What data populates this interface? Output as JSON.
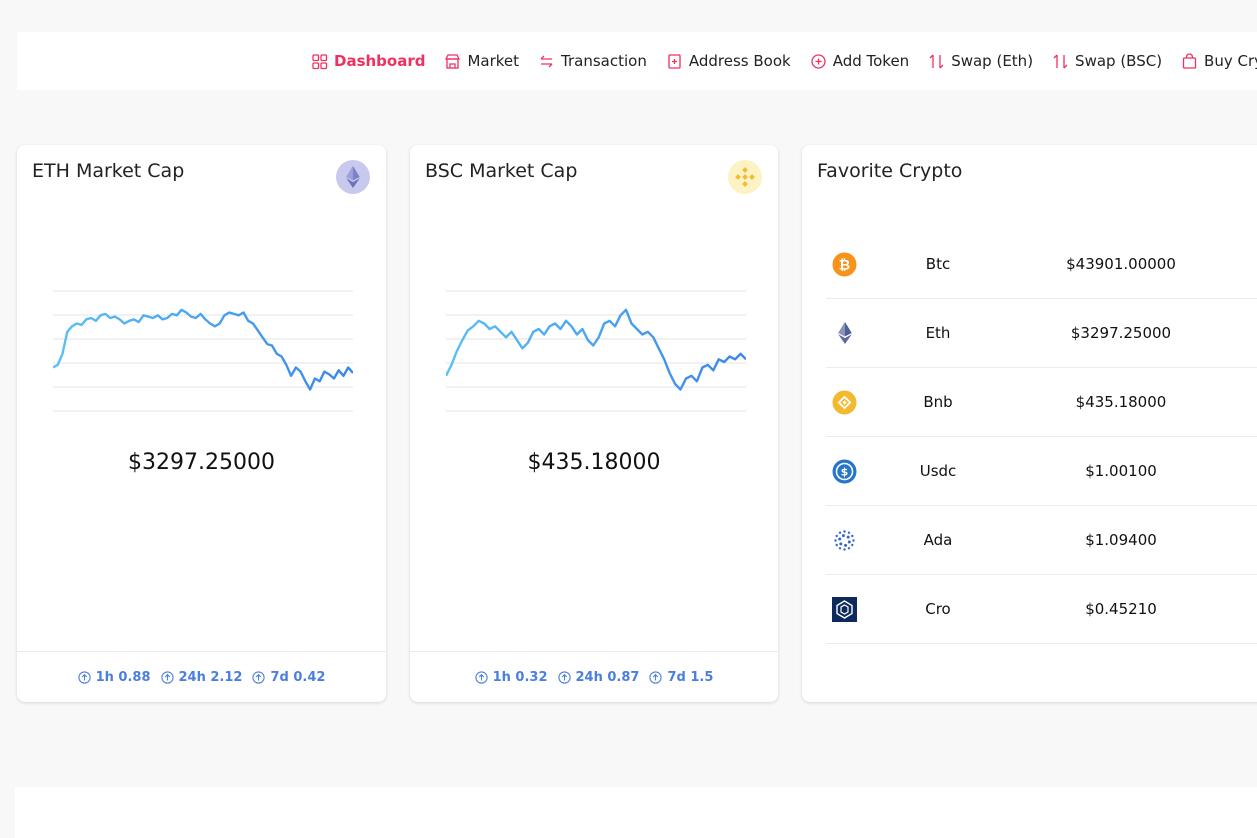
{
  "nav": {
    "items": [
      {
        "label": "Dashboard",
        "icon": "grid-icon",
        "active": true
      },
      {
        "label": "Market",
        "icon": "store-icon"
      },
      {
        "label": "Transaction",
        "icon": "swap-horizontal-icon"
      },
      {
        "label": "Address Book",
        "icon": "address-book-icon"
      },
      {
        "label": "Add Token",
        "icon": "plus-circle-icon"
      },
      {
        "label": "Swap (Eth)",
        "icon": "swap-vertical-icon"
      },
      {
        "label": "Swap (BSC)",
        "icon": "swap-vertical-icon"
      },
      {
        "label": "Buy Cryp",
        "icon": "shopping-bag-icon"
      }
    ],
    "accent": "#f0305f"
  },
  "eth_card": {
    "title": "ETH Market Cap",
    "icon": "ethereum-icon",
    "price": "$3297.25000",
    "changes": [
      {
        "label": "1h 0.88"
      },
      {
        "label": "24h 2.12"
      },
      {
        "label": "7d 0.42"
      }
    ]
  },
  "bsc_card": {
    "title": "BSC Market Cap",
    "icon": "binance-icon",
    "price": "$435.18000",
    "changes": [
      {
        "label": "1h 0.32"
      },
      {
        "label": "24h 0.87"
      },
      {
        "label": "7d 1.5"
      }
    ]
  },
  "favorites": {
    "title": "Favorite Crypto",
    "items": [
      {
        "name": "Btc",
        "price": "$43901.00000",
        "icon": "bitcoin-icon",
        "color": "#f7931a"
      },
      {
        "name": "Eth",
        "price": "$3297.25000",
        "icon": "ethereum-icon",
        "color": "#627eea"
      },
      {
        "name": "Bnb",
        "price": "$435.18000",
        "icon": "binance-icon",
        "color": "#f3ba2f"
      },
      {
        "name": "Usdc",
        "price": "$1.00100",
        "icon": "usdc-icon",
        "color": "#2775ca"
      },
      {
        "name": "Ada",
        "price": "$1.09400",
        "icon": "cardano-icon",
        "color": "#3468d1"
      },
      {
        "name": "Cro",
        "price": "$0.45210",
        "icon": "cronos-icon",
        "color": "#0c2a5e"
      }
    ]
  },
  "chart_data": [
    {
      "type": "line",
      "name": "eth-sparkline",
      "values": [
        28,
        30,
        38,
        54,
        58,
        60,
        59,
        63,
        64,
        62,
        66,
        67,
        64,
        65,
        63,
        60,
        62,
        63,
        61,
        66,
        65,
        64,
        66,
        63,
        64,
        67,
        66,
        70,
        68,
        65,
        64,
        67,
        63,
        60,
        58,
        60,
        66,
        68,
        67,
        66,
        68,
        62,
        60,
        55,
        50,
        45,
        44,
        38,
        36,
        30,
        22,
        28,
        25,
        18,
        12,
        20,
        18,
        25,
        23,
        20,
        26,
        22,
        28,
        24
      ],
      "colors": [
        "#5bc0f5",
        "#3a86ea"
      ]
    },
    {
      "type": "line",
      "name": "bsc-sparkline",
      "values": [
        22,
        30,
        40,
        48,
        55,
        58,
        62,
        60,
        56,
        58,
        54,
        50,
        54,
        48,
        42,
        46,
        54,
        56,
        52,
        58,
        60,
        56,
        62,
        58,
        52,
        56,
        48,
        44,
        50,
        60,
        62,
        58,
        66,
        70,
        60,
        56,
        52,
        54,
        50,
        42,
        34,
        24,
        16,
        12,
        20,
        22,
        18,
        28,
        30,
        26,
        34,
        32,
        36,
        34,
        38,
        34
      ],
      "colors": [
        "#5bc0f5",
        "#3a86ea"
      ]
    }
  ]
}
